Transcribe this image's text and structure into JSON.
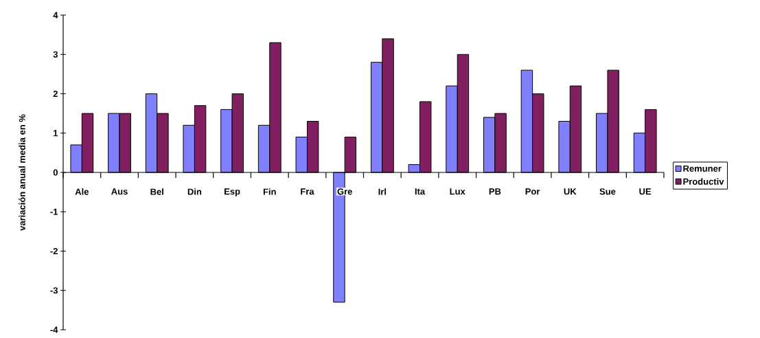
{
  "chart_data": {
    "type": "bar",
    "ylabel": "variación anual media en %",
    "categories": [
      "Ale",
      "Aus",
      "Bel",
      "Din",
      "Esp",
      "Fin",
      "Fra",
      "Gre",
      "Irl",
      "Ita",
      "Lux",
      "PB",
      "Por",
      "UK",
      "Sue",
      "UE"
    ],
    "series": [
      {
        "name": "Remuner",
        "color": "#8080ff",
        "values": [
          0.7,
          1.5,
          2.0,
          1.2,
          1.6,
          1.2,
          0.9,
          -3.3,
          2.8,
          0.2,
          2.2,
          1.4,
          2.6,
          1.3,
          1.5,
          1.0
        ]
      },
      {
        "name": "Productiv",
        "color": "#802060",
        "values": [
          1.5,
          1.5,
          1.5,
          1.7,
          2.0,
          3.3,
          1.3,
          0.9,
          3.4,
          1.8,
          3.0,
          1.5,
          2.0,
          2.2,
          2.6,
          1.6
        ]
      }
    ],
    "ylim": [
      -4,
      4
    ],
    "yticks": [
      -4,
      -3,
      -2,
      -1,
      0,
      1,
      2,
      3,
      4
    ],
    "grid": false,
    "legend": "right"
  }
}
